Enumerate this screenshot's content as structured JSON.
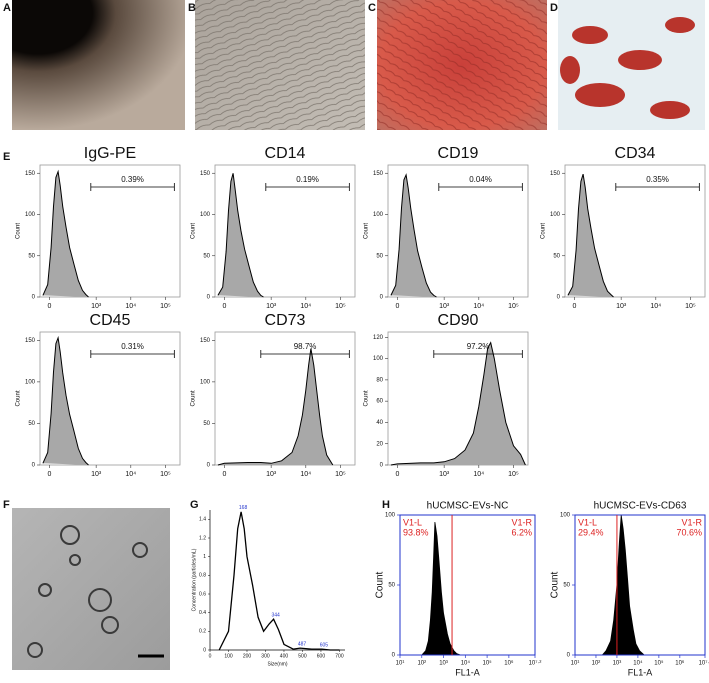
{
  "panel_labels": [
    "A",
    "B",
    "C",
    "D",
    "E",
    "F",
    "G",
    "H"
  ],
  "flow": {
    "xlim": [
      -60,
      262144
    ],
    "xticks": [
      0,
      {
        "value": 1000,
        "label": "10³"
      },
      {
        "value": 10000,
        "label": "10⁴"
      },
      {
        "value": 100000,
        "label": "10⁵"
      }
    ],
    "ylabel": "Count",
    "panels": [
      {
        "title": "IgG-PE",
        "percent": "0.39%",
        "gate": [
          700,
          180000
        ],
        "ylim": [
          0,
          160
        ],
        "yticks": [
          0,
          50,
          100,
          150
        ],
        "x": [
          -40,
          -10,
          10,
          25,
          40,
          55,
          70,
          90,
          120,
          160,
          220,
          300,
          400,
          500,
          600
        ],
        "values": [
          2,
          15,
          60,
          110,
          145,
          152,
          135,
          110,
          85,
          60,
          40,
          20,
          8,
          3,
          0
        ]
      },
      {
        "title": "CD14",
        "percent": "0.19%",
        "gate": [
          700,
          180000
        ],
        "ylim": [
          0,
          160
        ],
        "yticks": [
          0,
          50,
          100,
          150
        ],
        "x": [
          -40,
          -10,
          10,
          25,
          40,
          55,
          70,
          90,
          120,
          160,
          220,
          300,
          400,
          500,
          600
        ],
        "values": [
          2,
          12,
          55,
          105,
          140,
          150,
          130,
          105,
          80,
          58,
          38,
          18,
          7,
          2,
          0
        ]
      },
      {
        "title": "CD19",
        "percent": "0.04%",
        "gate": [
          700,
          180000
        ],
        "ylim": [
          0,
          160
        ],
        "yticks": [
          0,
          50,
          100,
          150
        ],
        "x": [
          -40,
          -10,
          10,
          25,
          40,
          55,
          70,
          90,
          120,
          160,
          220,
          300,
          400,
          500,
          600
        ],
        "values": [
          2,
          14,
          58,
          108,
          142,
          148,
          132,
          108,
          82,
          56,
          36,
          17,
          6,
          2,
          0
        ]
      },
      {
        "title": "CD34",
        "percent": "0.35%",
        "gate": [
          700,
          180000
        ],
        "ylim": [
          0,
          160
        ],
        "yticks": [
          0,
          50,
          100,
          150
        ],
        "x": [
          -40,
          -10,
          10,
          25,
          40,
          55,
          70,
          90,
          120,
          160,
          220,
          300,
          400,
          500,
          600
        ],
        "values": [
          2,
          13,
          57,
          107,
          140,
          149,
          133,
          107,
          83,
          59,
          39,
          19,
          7,
          3,
          0
        ]
      },
      {
        "title": "CD45",
        "percent": "0.31%",
        "gate": [
          700,
          180000
        ],
        "ylim": [
          0,
          160
        ],
        "yticks": [
          0,
          50,
          100,
          150
        ],
        "x": [
          -40,
          -10,
          10,
          25,
          40,
          55,
          70,
          90,
          120,
          160,
          220,
          300,
          400,
          500,
          600
        ],
        "values": [
          2,
          15,
          62,
          112,
          146,
          153,
          136,
          111,
          84,
          61,
          41,
          20,
          8,
          3,
          0
        ]
      },
      {
        "title": "CD73",
        "percent": "98.7%",
        "gate": [
          500,
          180000
        ],
        "ylim": [
          0,
          160
        ],
        "yticks": [
          0,
          50,
          100,
          150
        ],
        "x": [
          -40,
          0,
          200,
          500,
          1000,
          2000,
          4000,
          6000,
          8000,
          10000,
          12000,
          14000,
          17000,
          20000,
          25000,
          30000,
          40000,
          60000
        ],
        "values": [
          0,
          2,
          3,
          3,
          2,
          5,
          15,
          35,
          60,
          90,
          120,
          140,
          120,
          95,
          60,
          35,
          12,
          0
        ]
      },
      {
        "title": "CD90",
        "percent": "97.2%",
        "gate": [
          500,
          180000
        ],
        "ylim": [
          0,
          125
        ],
        "yticks": [
          0,
          20,
          40,
          60,
          80,
          100,
          120
        ],
        "x": [
          -40,
          0,
          200,
          500,
          1000,
          2000,
          4000,
          7000,
          10000,
          14000,
          18000,
          22000,
          28000,
          40000,
          60000,
          100000,
          160000,
          220000
        ],
        "values": [
          0,
          1,
          2,
          2,
          3,
          6,
          14,
          30,
          55,
          85,
          110,
          115,
          100,
          70,
          40,
          18,
          10,
          0
        ]
      }
    ]
  },
  "nta": {
    "ylabel": "Concentration (particles/mL)",
    "xlabel": "Size(nm)",
    "xlim": [
      0,
      730
    ],
    "xticks": [
      0,
      100,
      200,
      300,
      400,
      500,
      600,
      700
    ],
    "ylim": [
      0,
      1.5
    ],
    "yticks": [
      0,
      0.2,
      0.4,
      0.6,
      0.8,
      1,
      1.2,
      1.4
    ],
    "x": [
      50,
      100,
      130,
      150,
      168,
      185,
      200,
      230,
      260,
      290,
      320,
      344,
      370,
      400,
      450,
      487,
      550,
      605,
      650,
      700
    ],
    "values": [
      0,
      0.2,
      0.8,
      1.3,
      1.48,
      1.3,
      1.0,
      0.7,
      0.35,
      0.2,
      0.28,
      0.33,
      0.22,
      0.06,
      0.01,
      0.02,
      0.01,
      0.01,
      0,
      0
    ],
    "peaks": [
      168,
      344,
      487,
      605
    ]
  },
  "ev": {
    "xlabel": "FL1-A",
    "ylabel": "Count",
    "xscale": "log",
    "xlim": [
      10,
      15848932
    ],
    "xticks": [
      {
        "value": 10,
        "label": "10¹"
      },
      {
        "value": 100,
        "label": "10²"
      },
      {
        "value": 1000,
        "label": "10³"
      },
      {
        "value": 10000,
        "label": "10⁴"
      },
      {
        "value": 100000,
        "label": "10⁵"
      },
      {
        "value": 1000000,
        "label": "10⁶"
      },
      {
        "value": 15848932,
        "label": "10⁷·²"
      }
    ],
    "ylim": [
      0,
      100
    ],
    "yticks": [
      0,
      50,
      100
    ],
    "panels": [
      {
        "title": "hUCMSC-EVs-NC",
        "left_label": "V1-L",
        "left_percent": "93.8%",
        "right_label": "V1-R",
        "right_percent": "6.2%",
        "gate": 2455,
        "x": [
          100,
          150,
          200,
          250,
          300,
          350,
          400,
          500,
          600,
          800,
          1000,
          1500,
          2000,
          3000,
          4000,
          6000
        ],
        "values": [
          0,
          3,
          10,
          25,
          45,
          70,
          95,
          85,
          70,
          45,
          30,
          15,
          8,
          3,
          1,
          0
        ]
      },
      {
        "title": "hUCMSC-EVs-CD63",
        "left_label": "V1-L",
        "left_percent": "29.4%",
        "right_label": "V1-R",
        "right_percent": "70.6%",
        "gate": 1000,
        "x": [
          200,
          300,
          500,
          700,
          1000,
          1300,
          1600,
          2000,
          2500,
          3200,
          4000,
          6000,
          8000,
          12000,
          20000
        ],
        "values": [
          0,
          3,
          10,
          25,
          50,
          80,
          100,
          90,
          75,
          55,
          35,
          18,
          8,
          3,
          0
        ]
      }
    ]
  }
}
